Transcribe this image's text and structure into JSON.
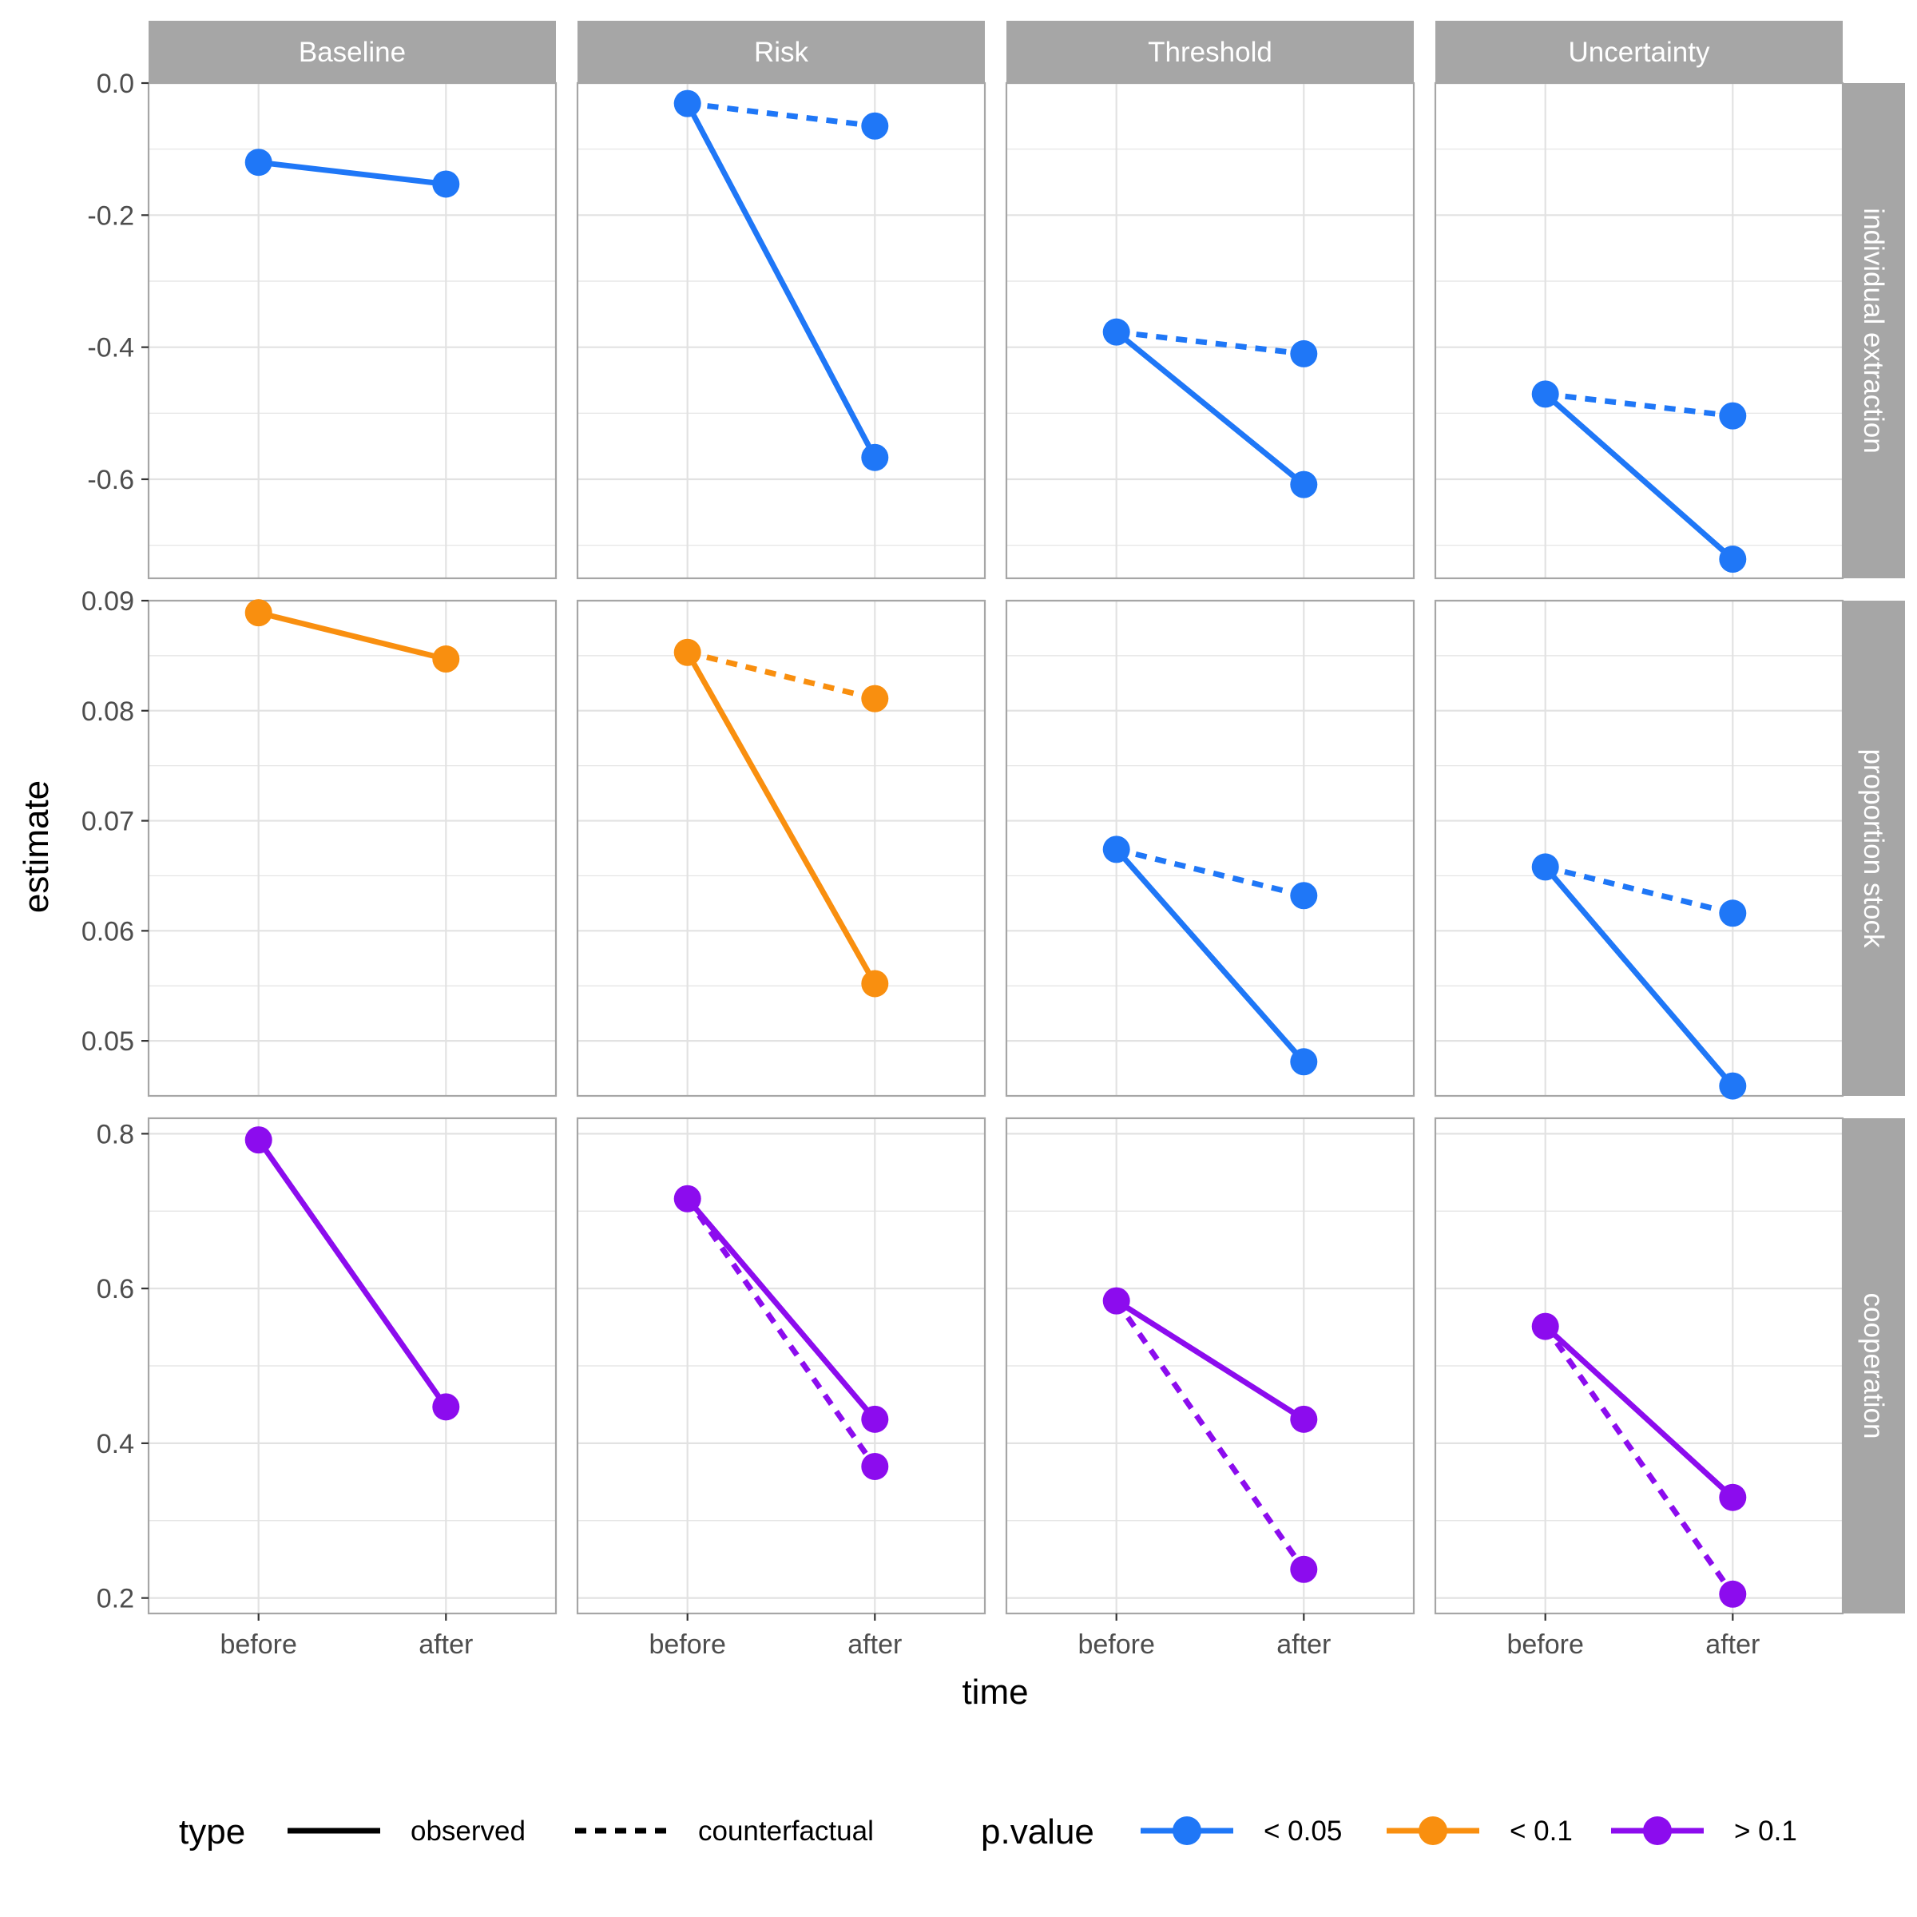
{
  "chart_data": {
    "type": "line",
    "xlabel": "time",
    "ylabel": "estimate",
    "x_categories": [
      "before",
      "after"
    ],
    "columns": [
      "Baseline",
      "Risk",
      "Threshold",
      "Uncertainty"
    ],
    "rows": [
      {
        "label": "individual extraction",
        "ylim": [
          -0.75,
          0.0
        ],
        "ticks": [
          0.0,
          -0.2,
          -0.4,
          -0.6
        ],
        "tick_labels": [
          "0.0",
          "-0.2",
          "-0.4",
          "-0.6"
        ]
      },
      {
        "label": "proportion stock",
        "ylim": [
          0.045,
          0.09
        ],
        "ticks": [
          0.09,
          0.08,
          0.07,
          0.06,
          0.05
        ],
        "tick_labels": [
          "0.09",
          "0.08",
          "0.07",
          "0.06",
          "0.05"
        ]
      },
      {
        "label": "cooperation",
        "ylim": [
          0.18,
          0.82
        ],
        "ticks": [
          0.8,
          0.6,
          0.4,
          0.2
        ],
        "tick_labels": [
          "0.8",
          "0.6",
          "0.4",
          "0.2"
        ]
      }
    ],
    "panels": [
      {
        "row": 0,
        "col": 0,
        "pvalue": "< 0.05",
        "observed": [
          -0.12,
          -0.153
        ],
        "counterfactual": null
      },
      {
        "row": 0,
        "col": 1,
        "pvalue": "< 0.05",
        "observed": [
          -0.031,
          -0.567
        ],
        "counterfactual": [
          -0.031,
          -0.065
        ]
      },
      {
        "row": 0,
        "col": 2,
        "pvalue": "< 0.05",
        "observed": [
          -0.377,
          -0.608
        ],
        "counterfactual": [
          -0.377,
          -0.41
        ]
      },
      {
        "row": 0,
        "col": 3,
        "pvalue": "< 0.05",
        "observed": [
          -0.471,
          -0.721
        ],
        "counterfactual": [
          -0.471,
          -0.504
        ]
      },
      {
        "row": 1,
        "col": 0,
        "pvalue": "< 0.1",
        "observed": [
          0.0889,
          0.0847
        ],
        "counterfactual": null
      },
      {
        "row": 1,
        "col": 1,
        "pvalue": "< 0.1",
        "observed": [
          0.0853,
          0.0552
        ],
        "counterfactual": [
          0.0853,
          0.0811
        ]
      },
      {
        "row": 1,
        "col": 2,
        "pvalue": "< 0.05",
        "observed": [
          0.0674,
          0.0481
        ],
        "counterfactual": [
          0.0674,
          0.0632
        ]
      },
      {
        "row": 1,
        "col": 3,
        "pvalue": "< 0.05",
        "observed": [
          0.0658,
          0.0459
        ],
        "counterfactual": [
          0.0658,
          0.0616
        ]
      },
      {
        "row": 2,
        "col": 0,
        "pvalue": "> 0.1",
        "observed": [
          0.792,
          0.447
        ],
        "counterfactual": null
      },
      {
        "row": 2,
        "col": 1,
        "pvalue": "> 0.1",
        "observed": [
          0.716,
          0.431
        ],
        "counterfactual": [
          0.716,
          0.37
        ]
      },
      {
        "row": 2,
        "col": 2,
        "pvalue": "> 0.1",
        "observed": [
          0.584,
          0.431
        ],
        "counterfactual": [
          0.584,
          0.237
        ]
      },
      {
        "row": 2,
        "col": 3,
        "pvalue": "> 0.1",
        "observed": [
          0.551,
          0.33
        ],
        "counterfactual": [
          0.551,
          0.205
        ]
      }
    ],
    "legend": {
      "placement": "bottom",
      "type_title": "type",
      "type_items": [
        {
          "label": "observed",
          "linetype": "solid"
        },
        {
          "label": "counterfactual",
          "linetype": "dashed"
        }
      ],
      "pvalue_title": "p.value",
      "pvalue_items": [
        {
          "label": "< 0.05",
          "color": "#1f77f7"
        },
        {
          "label": "< 0.1",
          "color": "#f98f0f"
        },
        {
          "label": "> 0.1",
          "color": "#8c0cee"
        }
      ]
    },
    "colors": {
      "strip": "#a6a6a6",
      "grid": "#e2e2e2",
      "panel_border": "#a6a6a6"
    },
    "grid": true
  }
}
